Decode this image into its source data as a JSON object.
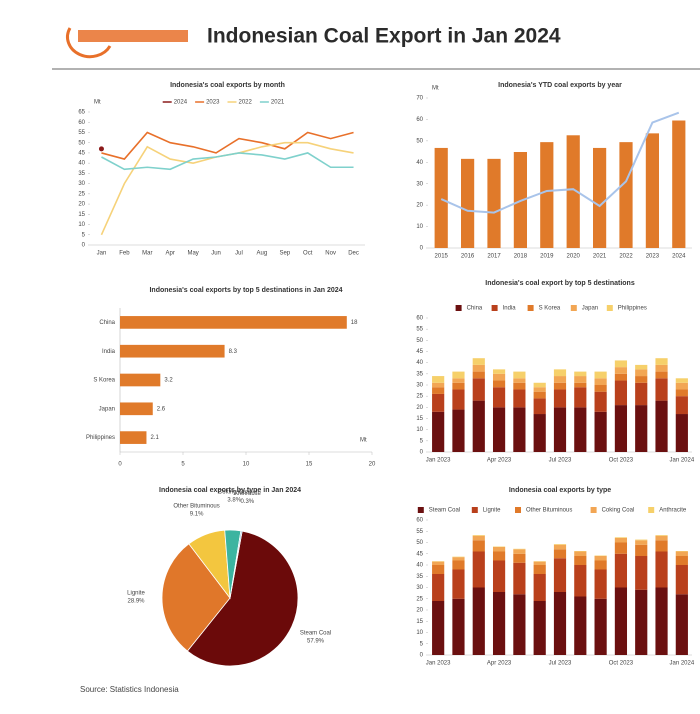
{
  "title": "Indonesian Coal Export in Jan 2024",
  "source": "Source: Statistics Indonesia",
  "chart_data": [
    {
      "type": "line",
      "title": "Indonesia's coal exports by month",
      "ylabel": "Mt",
      "categories": [
        "Jan",
        "Feb",
        "Mar",
        "Apr",
        "May",
        "Jun",
        "Jul",
        "Aug",
        "Sep",
        "Oct",
        "Nov",
        "Dec"
      ],
      "series": [
        {
          "name": "2024",
          "color": "#8b1a1a",
          "values": [
            47,
            null,
            null,
            null,
            null,
            null,
            null,
            null,
            null,
            null,
            null,
            null
          ]
        },
        {
          "name": "2023",
          "color": "#e8702a",
          "values": [
            45,
            42,
            55,
            50,
            48,
            45,
            52,
            50,
            47,
            55,
            52,
            55
          ]
        },
        {
          "name": "2022",
          "color": "#f6d27a",
          "values": [
            5,
            30,
            48,
            42,
            40,
            43,
            45,
            48,
            50,
            50,
            47,
            45
          ]
        },
        {
          "name": "2021",
          "color": "#7fd1cc",
          "values": [
            43,
            37,
            38,
            37,
            42,
            43,
            45,
            44,
            42,
            45,
            38,
            38
          ]
        }
      ],
      "ylim": [
        0,
        65
      ],
      "yticks": [
        0,
        5,
        10,
        15,
        20,
        25,
        30,
        35,
        40,
        45,
        50,
        55,
        60,
        65
      ],
      "grid": false
    },
    {
      "type": "bar",
      "title": "Indonesia's YTD coal exports by year",
      "ylabel": "Mt",
      "categories": [
        "2015",
        "2016",
        "2017",
        "2018",
        "2019",
        "2020",
        "2021",
        "2022",
        "2023",
        "2024"
      ],
      "series": [
        {
          "color": "#e07a2a",
          "values": [
            46.7,
            41.6,
            41.6,
            44.8,
            49.4,
            52.6,
            46.7,
            49.4,
            53.5,
            59.5
          ]
        },
        {
          "color": "#a9c4ea",
          "axis": "y2",
          "values": [
            -3.7,
            -7.6,
            -8.2,
            -4.3,
            -1.0,
            -0.4,
            -6.0,
            2.2,
            21.8,
            25.1
          ]
        }
      ],
      "ylim": [
        0,
        70
      ],
      "yticks": [
        0,
        10,
        20,
        30,
        40,
        50,
        60,
        70
      ],
      "y2lim": [
        -20,
        30
      ],
      "grid": false
    },
    {
      "type": "hbar",
      "title": "Indonesia's coal exports by top 5 destinations in Jan 2024",
      "xlabel": "Mt",
      "categories": [
        "China",
        "India",
        "S Korea",
        "Japan",
        "Philippines"
      ],
      "values": [
        18.0,
        8.3,
        3.2,
        2.6,
        2.1
      ],
      "color": "#e07a2a",
      "xlim": [
        0,
        20
      ],
      "xticks": [
        0,
        5,
        10,
        15,
        20
      ]
    },
    {
      "type": "stacked",
      "title": "Indonesia's coal export by top 5 destinations",
      "categories": [
        "Jan 2023",
        null,
        null,
        "Apr 2023",
        null,
        null,
        "Jul 2023",
        null,
        null,
        "Oct 2023",
        null,
        null,
        "Jan 2024"
      ],
      "series": [
        {
          "name": "China",
          "color": "#6b1010",
          "values": [
            18,
            19,
            23,
            20,
            20,
            17,
            20,
            20,
            18,
            21,
            21,
            23,
            17
          ]
        },
        {
          "name": "India",
          "color": "#b9401c",
          "values": [
            8,
            9,
            10,
            9,
            8,
            7,
            8,
            9,
            9,
            11,
            10,
            10,
            8
          ]
        },
        {
          "name": "S Korea",
          "color": "#e07a2a",
          "values": [
            3,
            3,
            3,
            3,
            3,
            3,
            3,
            2,
            3,
            3,
            3,
            3,
            3
          ]
        },
        {
          "name": "Japan",
          "color": "#f2a654",
          "values": [
            2,
            2,
            3,
            3,
            2,
            2,
            3,
            3,
            3,
            3,
            3,
            3,
            3
          ]
        },
        {
          "name": "Philippines",
          "color": "#f6d06a",
          "values": [
            3,
            3,
            3,
            2,
            3,
            2,
            3,
            2,
            3,
            3,
            2,
            3,
            2
          ]
        }
      ],
      "ylim": [
        0,
        60
      ],
      "yticks": [
        0,
        5,
        10,
        15,
        20,
        25,
        30,
        35,
        40,
        45,
        50,
        55,
        60
      ]
    },
    {
      "type": "pie",
      "title": "Indonesia coal exports by type in Jan 2024",
      "categories": [
        "Steam Coal",
        "Lignite",
        "Other Bituminous",
        "Coking Coal",
        "Anthracite"
      ],
      "values": [
        57.9,
        28.9,
        9.1,
        3.8,
        0.3
      ],
      "value_labels": [
        "57.9%",
        "28.9%",
        "9.1%",
        "3.8%",
        "0.3%"
      ],
      "colors": [
        "#6b0a0a",
        "#e0772a",
        "#f3c63f",
        "#3cb4a0",
        "#6fa8dc"
      ]
    },
    {
      "type": "stacked",
      "title": "Indonesia coal exports by type",
      "categories": [
        "Jan 2023",
        null,
        null,
        "Apr 2023",
        null,
        null,
        "Jul 2023",
        null,
        null,
        "Oct 2023",
        null,
        null,
        "Jan 2024"
      ],
      "series": [
        {
          "name": "Steam Coal",
          "color": "#6b1010",
          "values": [
            24,
            25,
            30,
            28,
            27,
            24,
            28,
            26,
            25,
            30,
            29,
            30,
            27
          ]
        },
        {
          "name": "Lignite",
          "color": "#b9401c",
          "values": [
            12,
            13,
            16,
            14,
            14,
            12,
            15,
            14,
            13,
            15,
            15,
            16,
            13
          ]
        },
        {
          "name": "Other Bituminous",
          "color": "#e07a2a",
          "values": [
            4,
            4,
            5,
            4,
            4,
            4,
            4,
            4,
            4,
            5,
            5,
            5,
            4
          ]
        },
        {
          "name": "Coking Coal",
          "color": "#f2a654",
          "values": [
            1.5,
            1.5,
            2,
            2,
            2,
            1.5,
            2,
            2,
            2,
            2,
            2,
            2,
            2
          ]
        },
        {
          "name": "Anthracite",
          "color": "#f6d06a",
          "values": [
            0.2,
            0.2,
            0.3,
            0.2,
            0.2,
            0.2,
            0.3,
            0.2,
            0.2,
            0.3,
            0.3,
            0.3,
            0.2
          ]
        }
      ],
      "ylim": [
        0,
        60
      ],
      "yticks": [
        0,
        5,
        10,
        15,
        20,
        25,
        30,
        35,
        40,
        45,
        50,
        55,
        60
      ]
    }
  ]
}
